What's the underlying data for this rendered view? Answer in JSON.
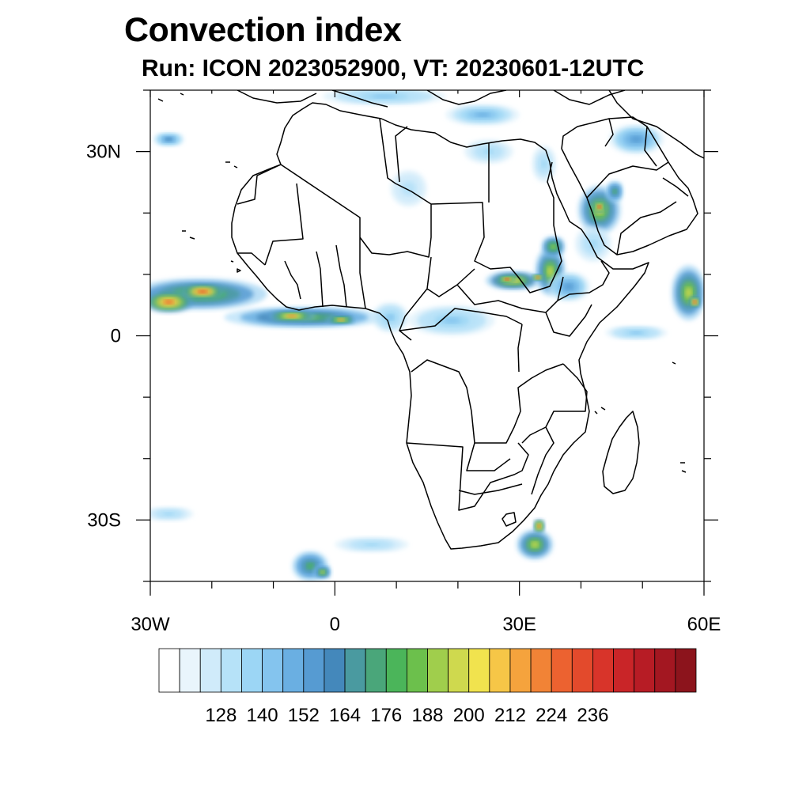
{
  "title": "Convection index",
  "subtitle": "Run: ICON 2023052900,  VT: 20230601-12UTC",
  "map": {
    "lon_range": [
      -30,
      60
    ],
    "lat_range": [
      -40,
      40
    ],
    "x_ticks": [
      {
        "lon": -30,
        "label": "30W"
      },
      {
        "lon": 0,
        "label": "0"
      },
      {
        "lon": 30,
        "label": "30E"
      },
      {
        "lon": 60,
        "label": "60E"
      }
    ],
    "y_ticks": [
      {
        "lat": 30,
        "label": "30N"
      },
      {
        "lat": 0,
        "label": "0"
      },
      {
        "lat": -30,
        "label": "30S"
      }
    ],
    "minor_lon_step": 10,
    "minor_lat_step": 10
  },
  "colorbar": {
    "colors": [
      "#ffffff",
      "#e9f5fc",
      "#d0ebfa",
      "#b6e2f8",
      "#9cd6f5",
      "#84c4ee",
      "#6aafe2",
      "#569bd2",
      "#4488bb",
      "#4a9aa0",
      "#4aa67a",
      "#4bb55a",
      "#6cc04c",
      "#a0ce4c",
      "#cfd94e",
      "#f1e34e",
      "#f6c647",
      "#f5a33d",
      "#f18336",
      "#ec6230",
      "#e34a2c",
      "#d8342a",
      "#c92528",
      "#b71c25",
      "#a31721",
      "#8c141c"
    ],
    "labels": [
      "128",
      "140",
      "152",
      "164",
      "176",
      "188",
      "200",
      "212",
      "224",
      "236"
    ]
  },
  "convection_cells": [
    {
      "lon": -22,
      "lat": 6.8,
      "rlon": 11,
      "rlat": 2.6,
      "level": 13
    },
    {
      "lon": -27,
      "lat": 5.5,
      "rlon": 4,
      "rlat": 1.8,
      "level": 19
    },
    {
      "lon": -21.5,
      "lat": 7.2,
      "rlon": 3.5,
      "rlat": 1.3,
      "level": 20
    },
    {
      "lon": -5,
      "lat": 3.0,
      "rlon": 13,
      "rlat": 1.8,
      "level": 12
    },
    {
      "lon": -7,
      "lat": 3.2,
      "rlon": 4,
      "rlat": 1.0,
      "level": 18
    },
    {
      "lon": 1,
      "lat": 2.6,
      "rlon": 2.5,
      "rlat": 0.8,
      "level": 17
    },
    {
      "lon": 9,
      "lat": 3.0,
      "rlon": 3,
      "rlat": 2.5,
      "level": 5
    },
    {
      "lon": 29,
      "lat": 9.0,
      "rlon": 4.5,
      "rlat": 1.6,
      "level": 15
    },
    {
      "lon": 28,
      "lat": 9.2,
      "rlon": 1.5,
      "rlat": 0.6,
      "level": 21
    },
    {
      "lon": 35,
      "lat": 10.5,
      "rlon": 2.5,
      "rlat": 4,
      "level": 14
    },
    {
      "lon": 35.5,
      "lat": 14.5,
      "rlon": 2,
      "rlat": 1.8,
      "level": 13
    },
    {
      "lon": 33,
      "lat": 9.5,
      "rlon": 1.2,
      "rlat": 0.6,
      "level": 19
    },
    {
      "lon": 38,
      "lat": 8.0,
      "rlon": 3.5,
      "rlat": 2.5,
      "level": 7
    },
    {
      "lon": 43,
      "lat": 20.5,
      "rlon": 3.5,
      "rlat": 4,
      "level": 14
    },
    {
      "lon": 43,
      "lat": 21.0,
      "rlon": 1,
      "rlat": 1.0,
      "level": 21
    },
    {
      "lon": 45.5,
      "lat": 23.5,
      "rlon": 1.5,
      "rlat": 1.8,
      "level": 11
    },
    {
      "lon": 49,
      "lat": 32,
      "rlon": 4.5,
      "rlat": 2.5,
      "level": 7
    },
    {
      "lon": 57.5,
      "lat": 7.0,
      "rlon": 2.8,
      "rlat": 4.5,
      "level": 14
    },
    {
      "lon": 58.5,
      "lat": 5.5,
      "rlon": 1.0,
      "rlat": 1.0,
      "level": 20
    },
    {
      "lon": 32.5,
      "lat": -34.0,
      "rlon": 3,
      "rlat": 2.5,
      "level": 14
    },
    {
      "lon": 33.2,
      "lat": -31.0,
      "rlon": 1.0,
      "rlat": 1.2,
      "level": 19
    },
    {
      "lon": -4,
      "lat": -37.5,
      "rlon": 3,
      "rlat": 2.5,
      "level": 11
    },
    {
      "lon": -2,
      "lat": -38.5,
      "rlon": 1.5,
      "rlat": 1.2,
      "level": 14
    },
    {
      "lon": 19,
      "lat": 2.5,
      "rlon": 7,
      "rlat": 2.5,
      "level": 5
    },
    {
      "lon": 8,
      "lat": 39,
      "rlon": 10,
      "rlat": 1.5,
      "level": 5
    },
    {
      "lon": 24,
      "lat": 36,
      "rlon": 6,
      "rlat": 1.8,
      "level": 6
    },
    {
      "lon": 49,
      "lat": 0.5,
      "rlon": 5,
      "rlat": 1.2,
      "level": 5
    },
    {
      "lon": 34,
      "lat": 28,
      "rlon": 2,
      "rlat": 3,
      "level": 4
    },
    {
      "lon": 25,
      "lat": 30,
      "rlon": 4,
      "rlat": 2,
      "level": 4
    },
    {
      "lon": -27,
      "lat": 32,
      "rlon": 2.5,
      "rlat": 1.2,
      "level": 8
    },
    {
      "lon": -27,
      "lat": -29,
      "rlon": 4,
      "rlat": 1.2,
      "level": 4
    },
    {
      "lon": 6,
      "lat": -34,
      "rlon": 6,
      "rlat": 1.3,
      "level": 4
    },
    {
      "lon": 42,
      "lat": 15,
      "rlon": 3,
      "rlat": 3,
      "level": 4
    },
    {
      "lon": 12,
      "lat": 24,
      "rlon": 3,
      "rlat": 3,
      "level": 3
    }
  ]
}
